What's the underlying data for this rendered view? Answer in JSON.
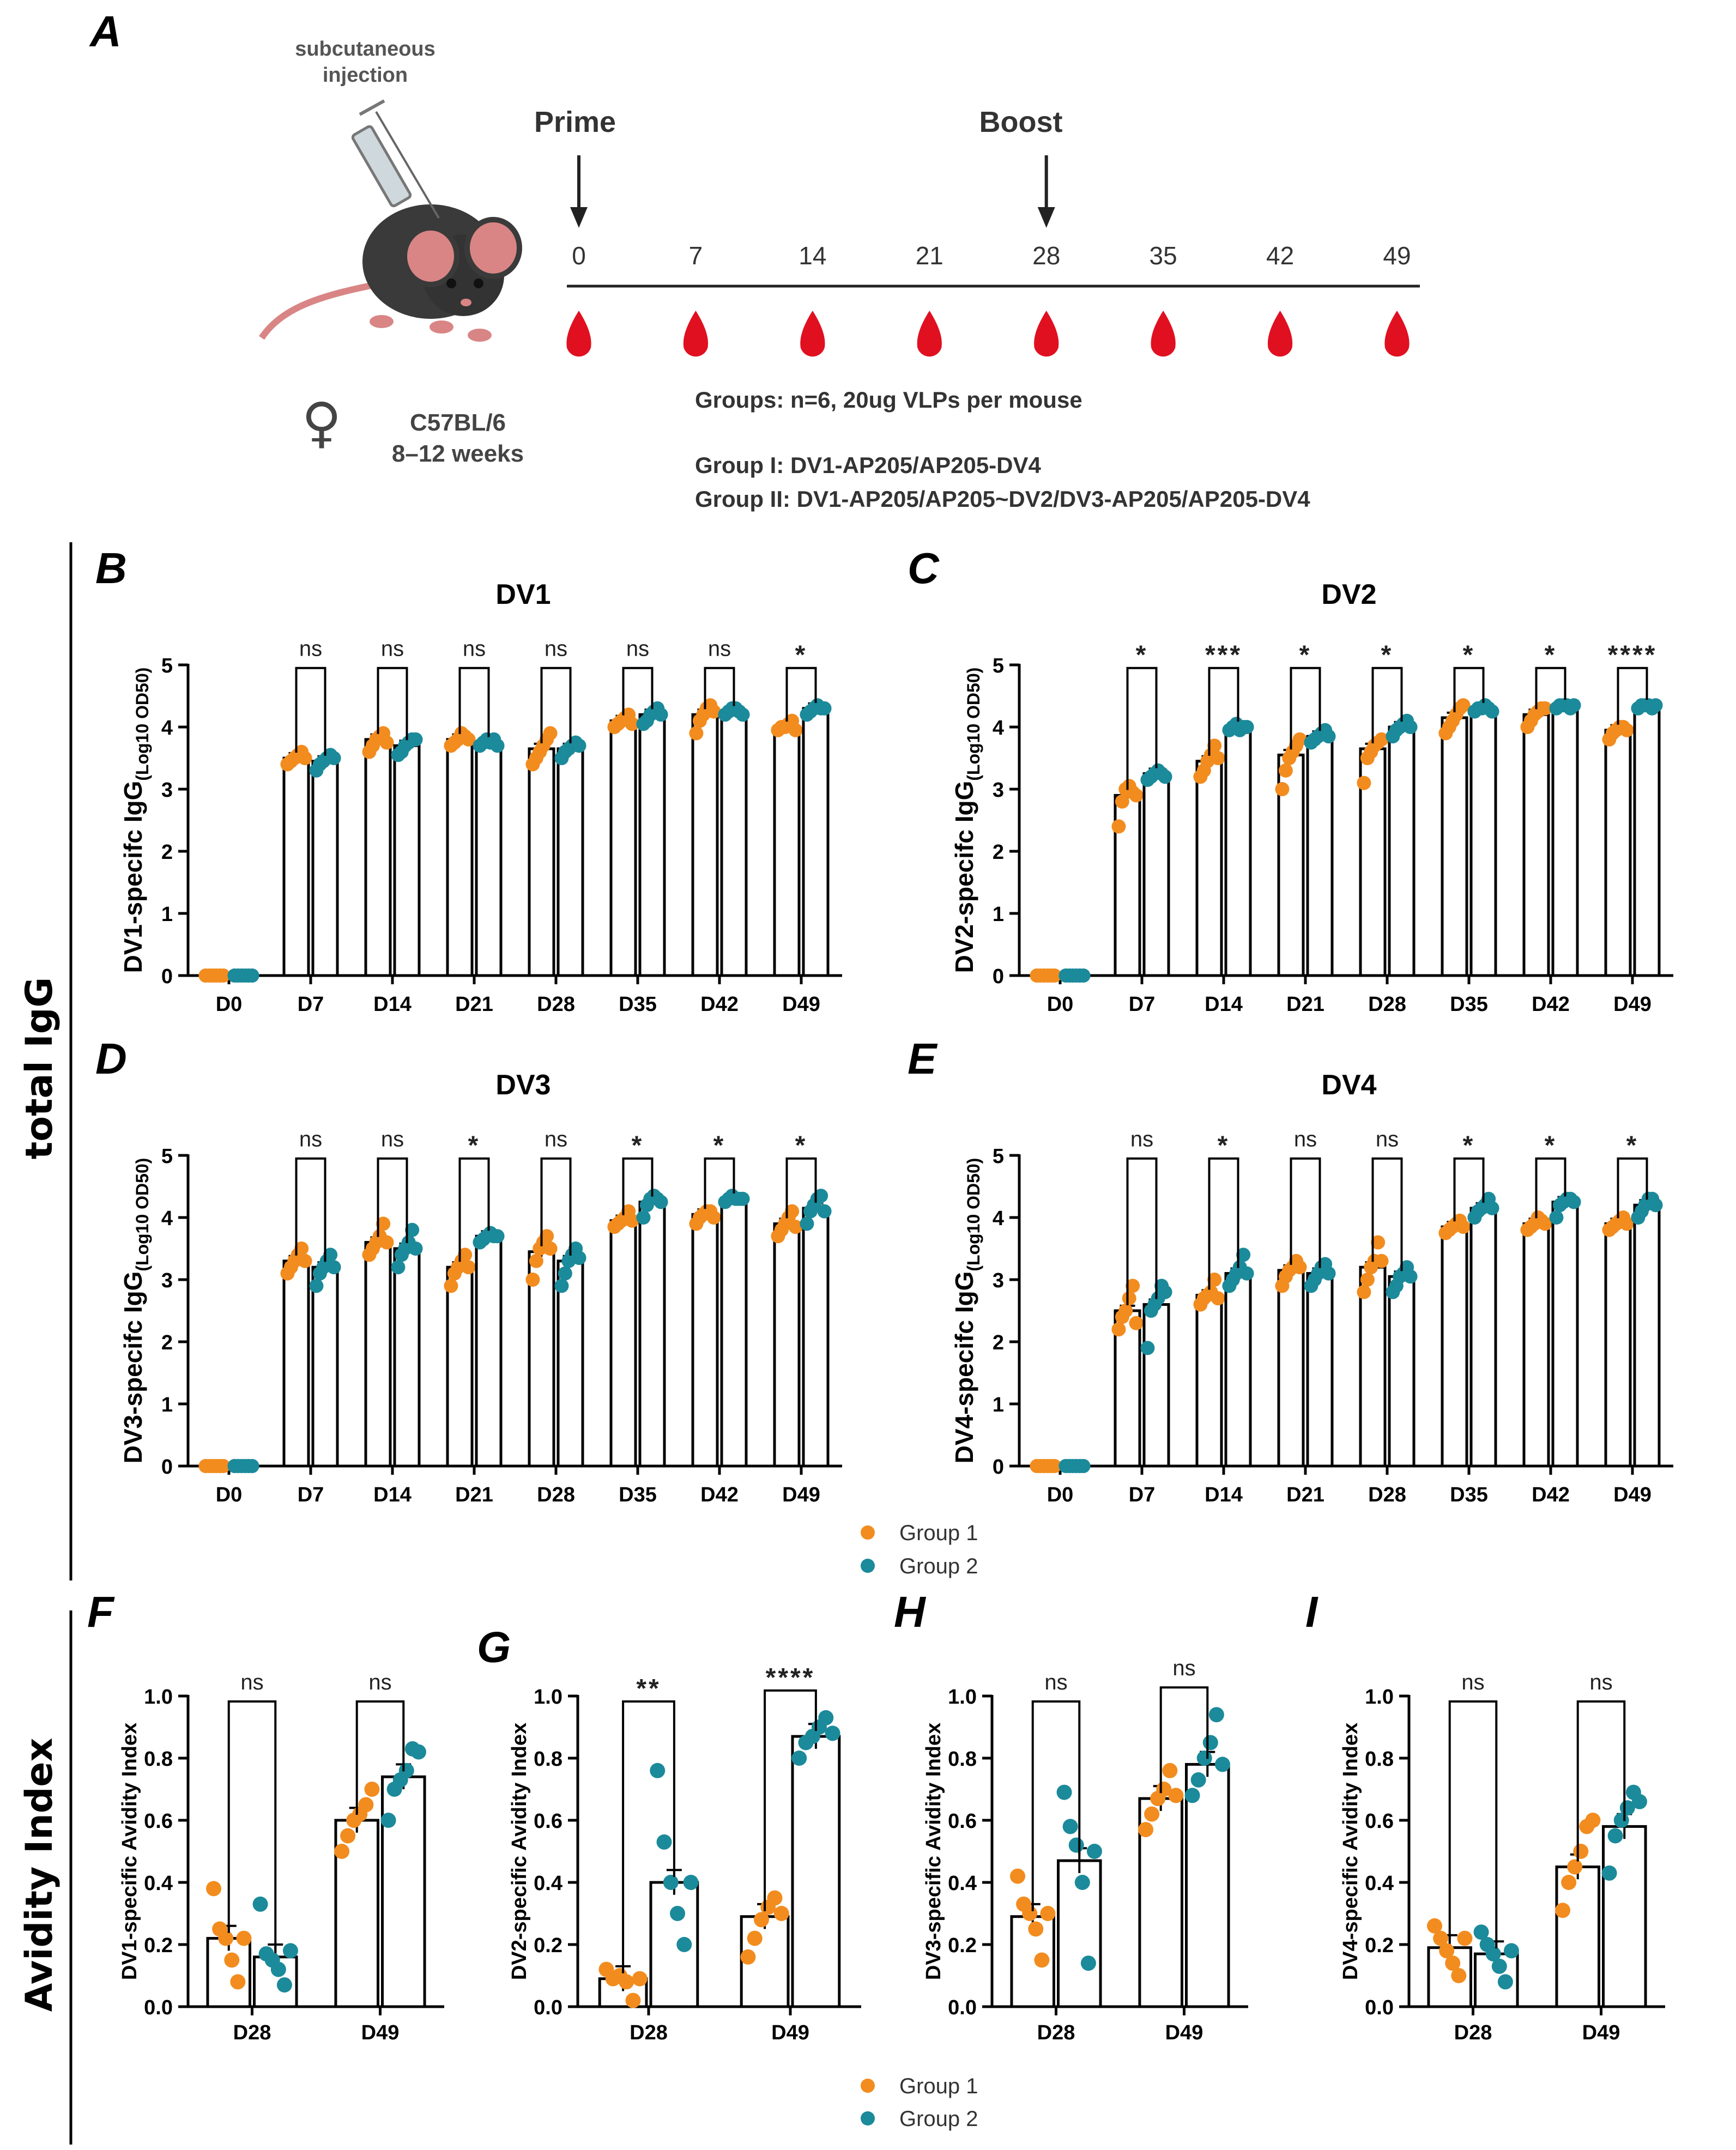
{
  "colors": {
    "group1": "#F28C1E",
    "group2": "#1B8A9A",
    "axis": "#000000",
    "blood": "#E01020",
    "mouse": "#3a3a3a",
    "mouse_pink": "#D98585"
  },
  "panel_a": {
    "letter": "A",
    "injection_label": [
      "subcutaneous",
      "injection"
    ],
    "prime_label": "Prime",
    "boost_label": "Boost",
    "timeline_days": [
      "0",
      "7",
      "14",
      "21",
      "28",
      "35",
      "42",
      "49"
    ],
    "prime_day": "0",
    "boost_day": "28",
    "sex_symbol": "♀",
    "strain": "C57BL/6",
    "age": "8–12 weeks",
    "groups_header": "Groups: n=6, 20ug VLPs per mouse",
    "group1_desc": "Group I: DV1-AP205/AP205-DV4",
    "group2_desc": "Group II: DV1-AP205/AP205~DV2/DV3-AP205/AP205-DV4"
  },
  "side_labels": {
    "total_igg": "total IgG",
    "avidity": "Avidity Index"
  },
  "legend": {
    "group1": "Group 1",
    "group2": "Group 2"
  },
  "chart_data": [
    {
      "panel": "B",
      "type": "bar",
      "title": "DV1",
      "ylabel_main": "DV1-specifc IgG",
      "ylabel_sub": "(Log10 OD50)",
      "categories": [
        "D0",
        "D7",
        "D14",
        "D21",
        "D28",
        "D35",
        "D42",
        "D49"
      ],
      "ylim": [
        0,
        5
      ],
      "yticks": [
        0,
        1,
        2,
        3,
        4,
        5
      ],
      "series": [
        {
          "name": "Group 1",
          "values": [
            0,
            3.5,
            3.8,
            3.8,
            3.65,
            4.1,
            4.2,
            4.0
          ],
          "points": [
            [
              0,
              0,
              0,
              0,
              0,
              0
            ],
            [
              3.4,
              3.45,
              3.5,
              3.55,
              3.6,
              3.5
            ],
            [
              3.6,
              3.7,
              3.8,
              3.85,
              3.9,
              3.75
            ],
            [
              3.7,
              3.75,
              3.8,
              3.9,
              3.85,
              3.8
            ],
            [
              3.4,
              3.5,
              3.6,
              3.7,
              3.8,
              3.9
            ],
            [
              4.0,
              4.05,
              4.1,
              4.15,
              4.2,
              4.05
            ],
            [
              3.9,
              4.1,
              4.2,
              4.3,
              4.35,
              4.25
            ],
            [
              3.95,
              4.0,
              4.0,
              4.05,
              4.1,
              3.95
            ]
          ]
        },
        {
          "name": "Group 2",
          "values": [
            0,
            3.45,
            3.7,
            3.75,
            3.65,
            4.2,
            4.25,
            4.3
          ],
          "points": [
            [
              0,
              0,
              0,
              0,
              0,
              0
            ],
            [
              3.3,
              3.4,
              3.45,
              3.5,
              3.55,
              3.5
            ],
            [
              3.55,
              3.6,
              3.7,
              3.75,
              3.8,
              3.8
            ],
            [
              3.7,
              3.75,
              3.8,
              3.75,
              3.8,
              3.7
            ],
            [
              3.5,
              3.6,
              3.65,
              3.7,
              3.75,
              3.7
            ],
            [
              4.05,
              4.1,
              4.2,
              4.25,
              4.3,
              4.2
            ],
            [
              4.2,
              4.25,
              4.3,
              4.3,
              4.25,
              4.2
            ],
            [
              4.2,
              4.25,
              4.3,
              4.35,
              4.3,
              4.3
            ]
          ]
        }
      ],
      "significance": [
        "ns",
        "ns",
        "ns",
        "ns",
        "ns",
        "ns",
        "*"
      ]
    },
    {
      "panel": "C",
      "type": "bar",
      "title": "DV2",
      "ylabel_main": "DV2-specifc IgG",
      "ylabel_sub": "(Log10 OD50)",
      "categories": [
        "D0",
        "D7",
        "D14",
        "D21",
        "D28",
        "D35",
        "D42",
        "D49"
      ],
      "ylim": [
        0,
        5
      ],
      "yticks": [
        0,
        1,
        2,
        3,
        4,
        5
      ],
      "series": [
        {
          "name": "Group 1",
          "values": [
            0,
            2.9,
            3.45,
            3.55,
            3.65,
            4.15,
            4.2,
            3.95
          ],
          "points": [
            [
              0,
              0,
              0,
              0,
              0,
              0
            ],
            [
              2.4,
              2.8,
              3.0,
              3.05,
              2.95,
              2.9
            ],
            [
              3.2,
              3.3,
              3.45,
              3.55,
              3.7,
              3.5
            ],
            [
              3.0,
              3.3,
              3.5,
              3.6,
              3.7,
              3.8
            ],
            [
              3.1,
              3.5,
              3.6,
              3.7,
              3.75,
              3.8
            ],
            [
              3.9,
              4.0,
              4.1,
              4.2,
              4.3,
              4.35
            ],
            [
              4.0,
              4.1,
              4.2,
              4.25,
              4.3,
              4.3
            ],
            [
              3.8,
              3.9,
              3.95,
              4.0,
              4.0,
              3.95
            ]
          ]
        },
        {
          "name": "Group 2",
          "values": [
            0,
            3.25,
            4.0,
            3.85,
            4.0,
            4.3,
            4.35,
            4.35
          ],
          "points": [
            [
              0,
              0,
              0,
              0,
              0,
              0
            ],
            [
              3.15,
              3.2,
              3.25,
              3.3,
              3.25,
              3.2
            ],
            [
              3.95,
              4.0,
              4.05,
              3.95,
              4.0,
              4.0
            ],
            [
              3.75,
              3.8,
              3.85,
              3.9,
              3.95,
              3.85
            ],
            [
              3.85,
              3.95,
              4.0,
              4.05,
              4.1,
              4.0
            ],
            [
              4.25,
              4.3,
              4.3,
              4.35,
              4.3,
              4.25
            ],
            [
              4.3,
              4.35,
              4.35,
              4.35,
              4.3,
              4.35
            ],
            [
              4.3,
              4.35,
              4.35,
              4.35,
              4.3,
              4.35
            ]
          ]
        }
      ],
      "significance": [
        "*",
        "***",
        "*",
        "*",
        "*",
        "*",
        "****"
      ]
    },
    {
      "panel": "D",
      "type": "bar",
      "title": "DV3",
      "ylabel_main": "DV3-specifc IgG",
      "ylabel_sub": "(Log10 OD50)",
      "categories": [
        "D0",
        "D7",
        "D14",
        "D21",
        "D28",
        "D35",
        "D42",
        "D49"
      ],
      "ylim": [
        0,
        5
      ],
      "yticks": [
        0,
        1,
        2,
        3,
        4,
        5
      ],
      "series": [
        {
          "name": "Group 1",
          "values": [
            0,
            3.3,
            3.6,
            3.2,
            3.45,
            3.95,
            4.05,
            3.9
          ],
          "points": [
            [
              0,
              0,
              0,
              0,
              0,
              0
            ],
            [
              3.1,
              3.2,
              3.3,
              3.4,
              3.5,
              3.3
            ],
            [
              3.4,
              3.5,
              3.6,
              3.7,
              3.9,
              3.6
            ],
            [
              2.9,
              3.1,
              3.2,
              3.3,
              3.4,
              3.2
            ],
            [
              3.0,
              3.3,
              3.5,
              3.6,
              3.7,
              3.5
            ],
            [
              3.85,
              3.9,
              3.95,
              4.0,
              4.1,
              3.95
            ],
            [
              3.9,
              4.0,
              4.05,
              4.1,
              4.1,
              4.0
            ],
            [
              3.7,
              3.8,
              3.9,
              4.0,
              4.1,
              3.85
            ]
          ]
        },
        {
          "name": "Group 2",
          "values": [
            0,
            3.2,
            3.5,
            3.7,
            3.3,
            4.25,
            4.3,
            4.15
          ],
          "points": [
            [
              0,
              0,
              0,
              0,
              0,
              0
            ],
            [
              2.9,
              3.1,
              3.2,
              3.3,
              3.4,
              3.2
            ],
            [
              3.2,
              3.4,
              3.5,
              3.6,
              3.8,
              3.5
            ],
            [
              3.6,
              3.65,
              3.7,
              3.75,
              3.7,
              3.7
            ],
            [
              2.9,
              3.1,
              3.3,
              3.4,
              3.5,
              3.35
            ],
            [
              4.0,
              4.2,
              4.3,
              4.35,
              4.3,
              4.25
            ],
            [
              4.25,
              4.3,
              4.35,
              4.3,
              4.3,
              4.3
            ],
            [
              3.9,
              4.1,
              4.2,
              4.3,
              4.35,
              4.1
            ]
          ]
        }
      ],
      "significance": [
        "ns",
        "ns",
        "*",
        "ns",
        "*",
        "*",
        "*"
      ]
    },
    {
      "panel": "E",
      "type": "bar",
      "title": "DV4",
      "ylabel_main": "DV4-specifc IgG",
      "ylabel_sub": "(Log10 OD50)",
      "categories": [
        "D0",
        "D7",
        "D14",
        "D21",
        "D28",
        "D35",
        "D42",
        "D49"
      ],
      "ylim": [
        0,
        5
      ],
      "yticks": [
        0,
        1,
        2,
        3,
        4,
        5
      ],
      "series": [
        {
          "name": "Group 1",
          "values": [
            0,
            2.5,
            2.75,
            3.15,
            3.2,
            3.85,
            3.9,
            3.9
          ],
          "points": [
            [
              0,
              0,
              0,
              0,
              0,
              0
            ],
            [
              2.2,
              2.4,
              2.5,
              2.7,
              2.9,
              2.3
            ],
            [
              2.6,
              2.7,
              2.75,
              2.8,
              3.0,
              2.7
            ],
            [
              2.9,
              3.05,
              3.15,
              3.2,
              3.3,
              3.2
            ],
            [
              2.8,
              3.0,
              3.2,
              3.3,
              3.6,
              3.3
            ],
            [
              3.75,
              3.8,
              3.85,
              3.9,
              3.95,
              3.85
            ],
            [
              3.8,
              3.85,
              3.9,
              4.0,
              3.95,
              3.9
            ],
            [
              3.8,
              3.85,
              3.9,
              3.95,
              4.0,
              3.9
            ]
          ]
        },
        {
          "name": "Group 2",
          "values": [
            0,
            2.6,
            3.1,
            3.1,
            3.05,
            4.15,
            4.25,
            4.2
          ],
          "points": [
            [
              0,
              0,
              0,
              0,
              0,
              0
            ],
            [
              1.9,
              2.5,
              2.6,
              2.7,
              2.9,
              2.8
            ],
            [
              2.9,
              3.0,
              3.1,
              3.2,
              3.4,
              3.1
            ],
            [
              2.9,
              3.0,
              3.1,
              3.2,
              3.25,
              3.1
            ],
            [
              2.8,
              2.9,
              3.05,
              3.1,
              3.2,
              3.05
            ],
            [
              4.0,
              4.1,
              4.15,
              4.2,
              4.3,
              4.15
            ],
            [
              4.0,
              4.2,
              4.25,
              4.3,
              4.3,
              4.25
            ],
            [
              4.0,
              4.1,
              4.2,
              4.3,
              4.3,
              4.2
            ]
          ]
        }
      ],
      "significance": [
        "ns",
        "*",
        "ns",
        "ns",
        "*",
        "*",
        "*"
      ]
    },
    {
      "panel": "F",
      "type": "bar",
      "title": "",
      "ylabel_main": "DV1-specific Avidity Index",
      "categories": [
        "D28",
        "D49"
      ],
      "ylim": [
        0,
        1
      ],
      "yticks": [
        0.0,
        0.2,
        0.4,
        0.6,
        0.8,
        1.0
      ],
      "series": [
        {
          "name": "Group 1",
          "values": [
            0.22,
            0.6
          ],
          "points": [
            [
              0.38,
              0.25,
              0.22,
              0.15,
              0.08,
              0.22
            ],
            [
              0.5,
              0.55,
              0.6,
              0.62,
              0.65,
              0.7
            ]
          ]
        },
        {
          "name": "Group 2",
          "values": [
            0.16,
            0.74
          ],
          "points": [
            [
              0.33,
              0.17,
              0.15,
              0.12,
              0.07,
              0.18
            ],
            [
              0.6,
              0.7,
              0.73,
              0.76,
              0.83,
              0.82
            ]
          ]
        }
      ],
      "significance": [
        "ns",
        "ns"
      ]
    },
    {
      "panel": "G",
      "type": "bar",
      "title": "",
      "ylabel_main": "DV2-specific Avidity Index",
      "categories": [
        "D28",
        "D49"
      ],
      "ylim": [
        0,
        1
      ],
      "yticks": [
        0.0,
        0.2,
        0.4,
        0.6,
        0.8,
        1.0
      ],
      "series": [
        {
          "name": "Group 1",
          "values": [
            0.09,
            0.29
          ],
          "points": [
            [
              0.12,
              0.09,
              0.1,
              0.08,
              0.02,
              0.09
            ],
            [
              0.16,
              0.22,
              0.28,
              0.32,
              0.35,
              0.3
            ]
          ]
        },
        {
          "name": "Group 2",
          "values": [
            0.4,
            0.87
          ],
          "points": [
            [
              0.76,
              0.53,
              0.4,
              0.3,
              0.2,
              0.4
            ],
            [
              0.8,
              0.85,
              0.87,
              0.9,
              0.93,
              0.88
            ]
          ]
        }
      ],
      "significance": [
        "**",
        "****"
      ]
    },
    {
      "panel": "H",
      "type": "bar",
      "title": "",
      "ylabel_main": "DV3-specific Avidity Index",
      "categories": [
        "D28",
        "D49"
      ],
      "ylim": [
        0,
        1
      ],
      "yticks": [
        0.0,
        0.2,
        0.4,
        0.6,
        0.8,
        1.0
      ],
      "series": [
        {
          "name": "Group 1",
          "values": [
            0.29,
            0.67
          ],
          "points": [
            [
              0.42,
              0.33,
              0.3,
              0.25,
              0.15,
              0.3
            ],
            [
              0.57,
              0.62,
              0.67,
              0.7,
              0.76,
              0.68
            ]
          ]
        },
        {
          "name": "Group 2",
          "values": [
            0.47,
            0.78
          ],
          "points": [
            [
              0.69,
              0.58,
              0.52,
              0.4,
              0.14,
              0.5
            ],
            [
              0.68,
              0.73,
              0.8,
              0.85,
              0.94,
              0.78
            ]
          ]
        }
      ],
      "significance": [
        "ns",
        "ns"
      ]
    },
    {
      "panel": "I",
      "type": "bar",
      "title": "",
      "ylabel_main": "DV4-specific Avidity Index",
      "categories": [
        "D28",
        "D49"
      ],
      "ylim": [
        0,
        1
      ],
      "yticks": [
        0.0,
        0.2,
        0.4,
        0.6,
        0.8,
        1.0
      ],
      "series": [
        {
          "name": "Group 1",
          "values": [
            0.19,
            0.45
          ],
          "points": [
            [
              0.26,
              0.22,
              0.18,
              0.14,
              0.1,
              0.22
            ],
            [
              0.31,
              0.4,
              0.45,
              0.5,
              0.58,
              0.6
            ]
          ]
        },
        {
          "name": "Group 2",
          "values": [
            0.17,
            0.58
          ],
          "points": [
            [
              0.24,
              0.2,
              0.17,
              0.13,
              0.08,
              0.18
            ],
            [
              0.43,
              0.55,
              0.6,
              0.64,
              0.69,
              0.66
            ]
          ]
        }
      ],
      "significance": [
        "ns",
        "ns"
      ]
    }
  ]
}
